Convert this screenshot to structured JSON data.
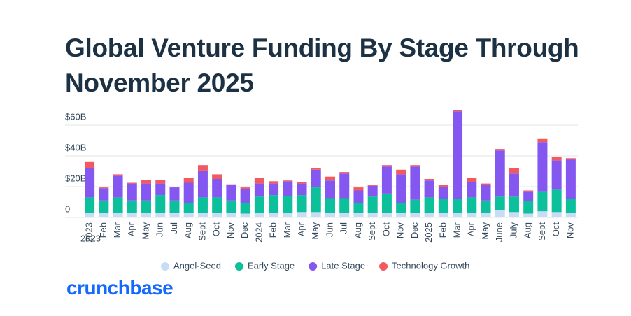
{
  "chart_data": {
    "type": "stacked_bar",
    "title": "Global Venture Funding By Stage Through November 2025",
    "categories": [
      "2023",
      "Feb",
      "Mar",
      "Apr",
      "May",
      "Jun",
      "Jul",
      "Aug",
      "Sept",
      "Oct",
      "Nov",
      "Dec",
      "2024",
      "Feb",
      "Mar",
      "Apr",
      "May",
      "Jun",
      "Jul",
      "Aug",
      "Sept",
      "Oct",
      "Nov",
      "Dec",
      "2025",
      "Feb",
      "Mar",
      "Apr",
      "May",
      "June",
      "July",
      "Aug",
      "Sept",
      "Oct",
      "Nov"
    ],
    "x_extra_label": "2023",
    "series": [
      {
        "name": "Angel-Seed",
        "color": "#c8dcf7",
        "values": [
          3,
          3,
          3,
          3,
          3,
          3,
          3,
          3,
          3,
          3,
          3,
          2.5,
          3,
          3,
          3,
          3.5,
          3.5,
          3,
          3,
          3,
          3,
          3,
          3,
          3,
          3,
          3,
          3,
          3,
          3,
          5,
          3.5,
          2.5,
          4,
          3.5,
          3
        ]
      },
      {
        "name": "Early Stage",
        "color": "#0cc09c",
        "values": [
          10,
          8,
          10,
          8,
          8,
          11.5,
          8,
          6.5,
          10,
          10,
          8,
          7,
          10.5,
          11.5,
          11,
          11,
          16,
          9.5,
          9.5,
          6.5,
          10.5,
          12.5,
          6.5,
          8.5,
          10,
          9,
          9,
          10,
          8,
          8.5,
          10,
          8,
          13,
          14.5,
          9
        ]
      },
      {
        "name": "Late Stage",
        "color": "#8458f0",
        "values": [
          19,
          8,
          14,
          11,
          11,
          7.5,
          8.5,
          13,
          17.5,
          12,
          10,
          9,
          8.5,
          7.5,
          9.5,
          7.5,
          11.5,
          11.5,
          16,
          8,
          7,
          17.5,
          18.5,
          21.5,
          11,
          8,
          57,
          10,
          10,
          30,
          15,
          6.5,
          32,
          19,
          25.5
        ]
      },
      {
        "name": "Technology Growth",
        "color": "#f25a5f",
        "values": [
          4,
          0.5,
          1,
          0.5,
          2.5,
          2.5,
          0.5,
          3,
          3.5,
          3,
          0.5,
          1,
          3.5,
          1.5,
          0.5,
          1,
          1,
          2.5,
          1,
          2,
          0.5,
          1,
          3,
          1,
          1,
          1,
          1,
          2.5,
          1,
          1,
          3.5,
          0.5,
          2,
          2.5,
          1
        ]
      }
    ],
    "ylim": [
      0,
      70
    ],
    "yticks": [
      0,
      {
        "value": 20,
        "label": "$20B"
      },
      {
        "value": 40,
        "label": "$40B"
      },
      {
        "value": 60,
        "label": "$60B"
      }
    ],
    "grid": true,
    "legend": "bottom",
    "source": "crunchbase"
  }
}
